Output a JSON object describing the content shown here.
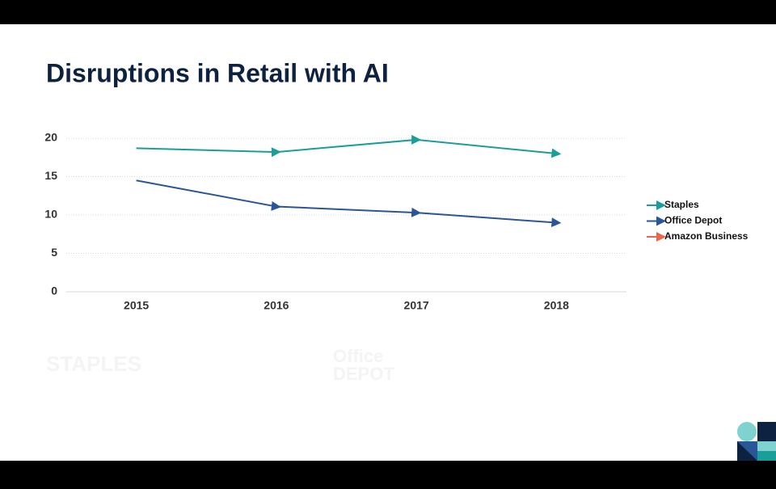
{
  "chart_data": {
    "type": "line",
    "title": "Disruptions in Retail with AI",
    "categories": [
      "2015",
      "2016",
      "2017",
      "2018"
    ],
    "series": [
      {
        "name": "Staples",
        "color": "#1a9e9a",
        "values": [
          18.7,
          18.2,
          19.8,
          18.0
        ]
      },
      {
        "name": "Office Depot",
        "color": "#2a5597",
        "values": [
          14.5,
          11.1,
          10.3,
          9.0
        ]
      },
      {
        "name": "Amazon Business",
        "color": "#e8674a",
        "values": [
          null,
          null,
          null,
          null
        ]
      }
    ],
    "ylim": [
      0,
      20
    ],
    "yticks": [
      0,
      5,
      10,
      15,
      20
    ],
    "grid": true,
    "legend": "right"
  },
  "logos": [
    "STAPLES",
    "Office",
    "DEPOT"
  ]
}
